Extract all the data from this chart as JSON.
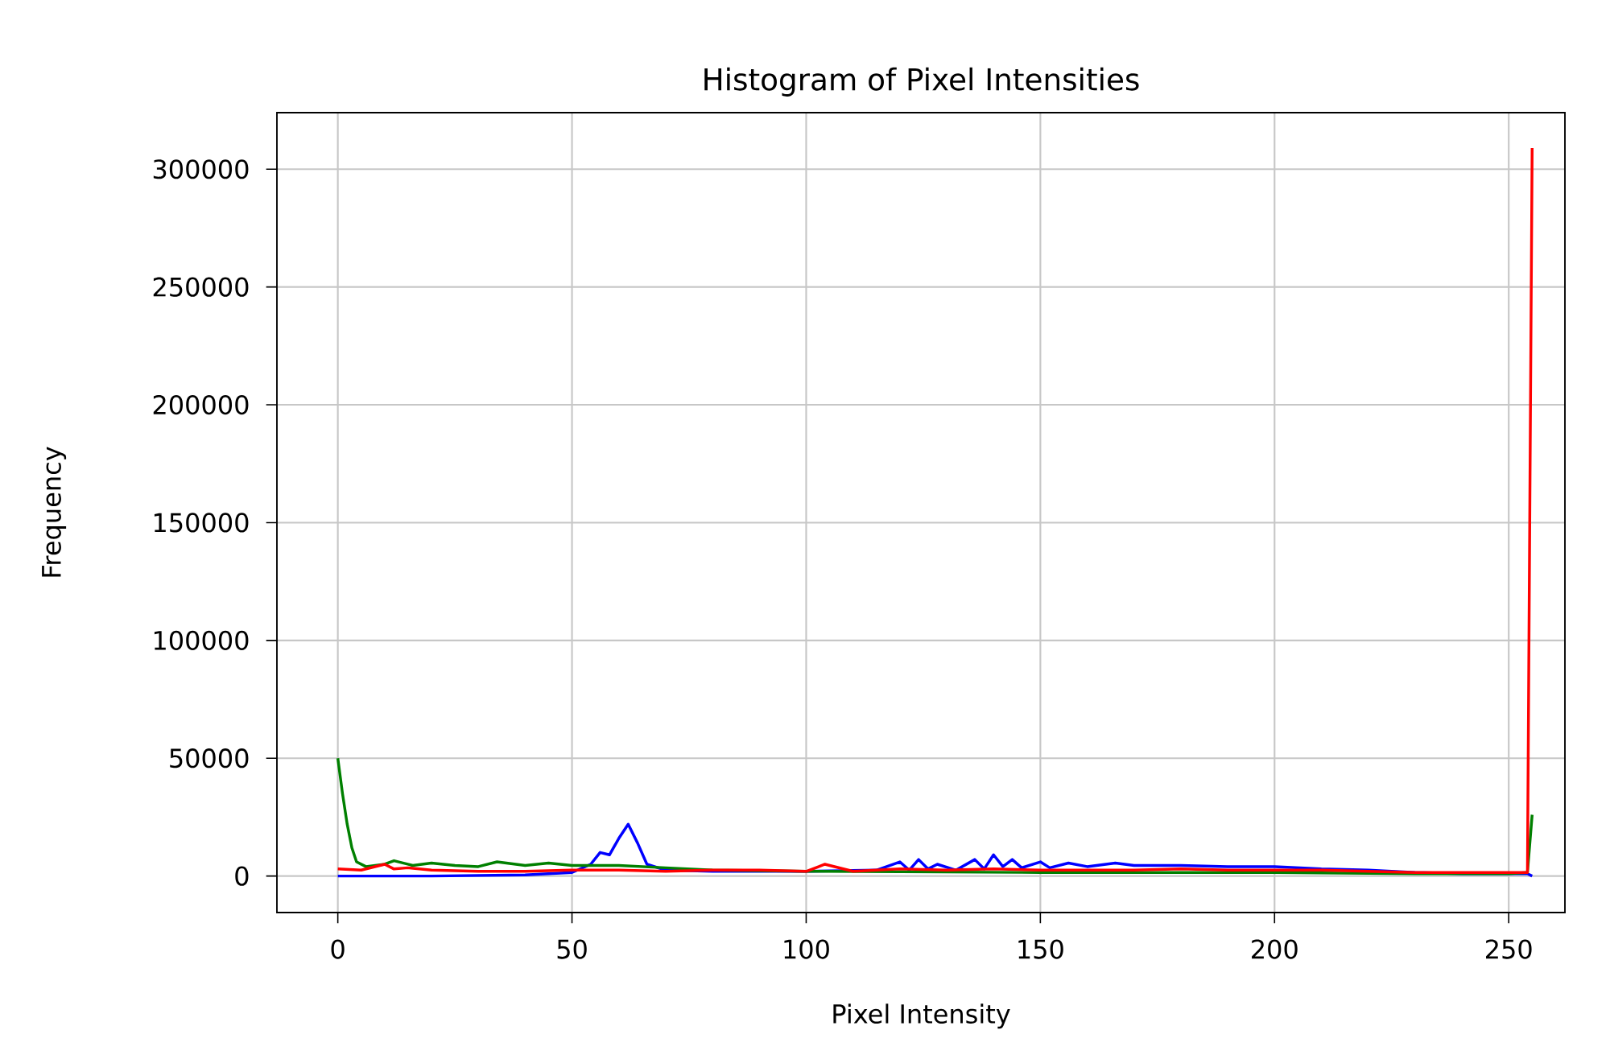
{
  "chart_data": {
    "type": "line",
    "title": "Histogram of Pixel Intensities",
    "xlabel": "Pixel Intensity",
    "ylabel": "Frequency",
    "xlim": [
      -13,
      262
    ],
    "ylim": [
      -15500,
      324000
    ],
    "xticks": [
      0,
      50,
      100,
      150,
      200,
      250
    ],
    "yticks": [
      0,
      50000,
      100000,
      150000,
      200000,
      250000,
      300000
    ],
    "grid": true,
    "series": [
      {
        "color": "#0000ff",
        "x": [
          0,
          20,
          40,
          50,
          54,
          56,
          58,
          60,
          62,
          64,
          66,
          70,
          80,
          100,
          115,
          120,
          122,
          124,
          126,
          128,
          132,
          136,
          138,
          140,
          142,
          144,
          146,
          150,
          152,
          156,
          160,
          166,
          170,
          180,
          190,
          200,
          210,
          220,
          230,
          240,
          250,
          254,
          255
        ],
        "values": [
          0,
          0,
          500,
          1500,
          5000,
          10000,
          9000,
          16000,
          22000,
          14000,
          5000,
          2500,
          2000,
          2000,
          2500,
          6000,
          2500,
          7000,
          3000,
          5000,
          2500,
          7000,
          3000,
          9000,
          4000,
          7000,
          3500,
          6000,
          3500,
          5500,
          4000,
          5500,
          4500,
          4500,
          4000,
          4000,
          3000,
          2500,
          1500,
          1000,
          1000,
          1000,
          0
        ]
      },
      {
        "color": "#008000",
        "x": [
          0,
          1,
          2,
          3,
          4,
          6,
          10,
          12,
          16,
          20,
          25,
          30,
          34,
          40,
          45,
          50,
          55,
          60,
          70,
          80,
          100,
          150,
          200,
          230,
          250,
          254,
          255
        ],
        "values": [
          50000,
          35000,
          22000,
          12000,
          6000,
          4000,
          5000,
          6500,
          4500,
          5500,
          4500,
          4000,
          6000,
          4500,
          5500,
          4500,
          4500,
          4500,
          3500,
          2500,
          2000,
          1500,
          1500,
          1000,
          1000,
          1500,
          26000
        ]
      },
      {
        "color": "#ff0000",
        "x": [
          0,
          5,
          10,
          12,
          15,
          20,
          30,
          40,
          50,
          60,
          70,
          80,
          90,
          100,
          104,
          110,
          120,
          130,
          140,
          150,
          160,
          170,
          180,
          190,
          200,
          210,
          220,
          230,
          240,
          250,
          254,
          255
        ],
        "values": [
          3000,
          2500,
          5000,
          3000,
          3500,
          2500,
          2000,
          2000,
          2500,
          2500,
          2000,
          2500,
          2500,
          2000,
          5000,
          2000,
          3000,
          2500,
          3000,
          2500,
          2500,
          2500,
          3000,
          2500,
          2500,
          2500,
          2000,
          1500,
          1500,
          1500,
          1500,
          309000
        ]
      }
    ]
  }
}
